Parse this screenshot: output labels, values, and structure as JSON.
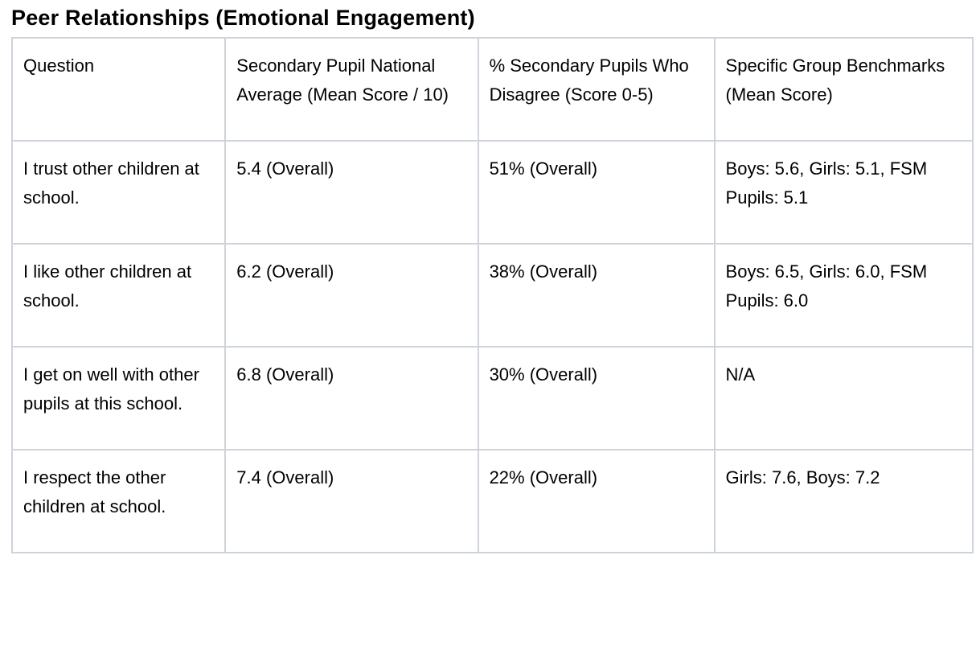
{
  "page": {
    "title": "Peer Relationships (Emotional Engagement)"
  },
  "colors": {
    "table_border": "#cfd3da",
    "text": "#000000",
    "background": "#ffffff"
  },
  "table": {
    "columns": [
      "Question",
      "Secondary Pupil National Average (Mean Score / 10)",
      "% Secondary Pupils Who Disagree (Score 0-5)",
      "Specific Group Benchmarks (Mean Score)"
    ],
    "rows": [
      {
        "question": "I trust other children at school.",
        "national_average": "5.4 (Overall)",
        "percent_disagree": "51% (Overall)",
        "benchmarks": "Boys: 5.6, Girls: 5.1, FSM Pupils: 5.1"
      },
      {
        "question": "I like other children at school.",
        "national_average": "6.2 (Overall)",
        "percent_disagree": "38% (Overall)",
        "benchmarks": "Boys: 6.5, Girls: 6.0, FSM Pupils: 6.0"
      },
      {
        "question": "I get on well with other pupils at this school.",
        "national_average": "6.8 (Overall)",
        "percent_disagree": "30% (Overall)",
        "benchmarks": "N/A"
      },
      {
        "question": "I respect the other children at school.",
        "national_average": "7.4 (Overall)",
        "percent_disagree": "22% (Overall)",
        "benchmarks": "Girls: 7.6, Boys: 7.2"
      }
    ]
  }
}
